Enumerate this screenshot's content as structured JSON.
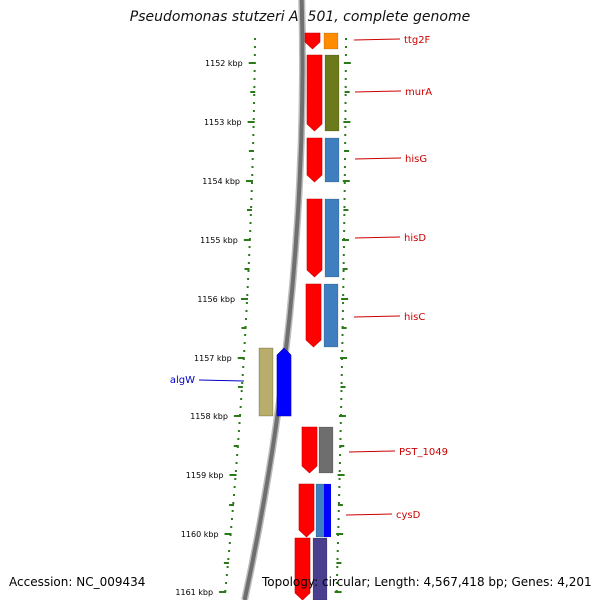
{
  "title": "Pseudomonas stutzeri A1501, complete genome",
  "footer": {
    "accession": "Accession: NC_009434",
    "topology": "Topology: circular; Length: 4,567,418 bp; Genes: 4,201"
  },
  "colors": {
    "tick": "#2a7a1a",
    "forward_cds": "#ff0000",
    "label_forward": "#cc0000",
    "label_reverse": "#0000cc",
    "reverse_cds": "#0000ff",
    "backbone": "#888888"
  },
  "scale": {
    "unit": "kbp",
    "ticks": [
      {
        "label": "1152 kbp"
      },
      {
        "label": "1153 kbp"
      },
      {
        "label": "1154 kbp"
      },
      {
        "label": "1155 kbp"
      },
      {
        "label": "1156 kbp"
      },
      {
        "label": "1157 kbp"
      },
      {
        "label": "1158 kbp"
      },
      {
        "label": "1159 kbp"
      },
      {
        "label": "1160 kbp"
      },
      {
        "label": "1161 kbp"
      }
    ]
  },
  "genes": [
    {
      "name": "ttg2F",
      "strand": "+",
      "cog_color": "#ff8c00"
    },
    {
      "name": "murA",
      "strand": "+",
      "cog_color": "#6b7a1a"
    },
    {
      "name": "hisG",
      "strand": "+",
      "cog_color": "#3f7fbf"
    },
    {
      "name": "hisD",
      "strand": "+",
      "cog_color": "#3f7fbf"
    },
    {
      "name": "hisC",
      "strand": "+",
      "cog_color": "#3f7fbf"
    },
    {
      "name": "algW",
      "strand": "-",
      "cog_color": "#b8ad6a"
    },
    {
      "name": "PST_1049",
      "strand": "+",
      "cog_color": "#6e6e6e"
    },
    {
      "name": "cysD",
      "strand": "+",
      "cog_color": "#3f7fbf"
    },
    {
      "name": "",
      "strand": "+",
      "cog_color": "#4a3f8f"
    }
  ]
}
